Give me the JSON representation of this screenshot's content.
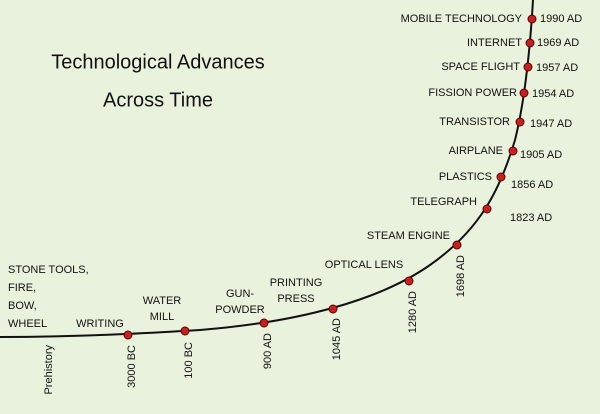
{
  "title": [
    "Technological Advances",
    "Across Time"
  ],
  "events": [
    {
      "label": [
        "STONE TOOLS,",
        "FIRE,",
        "BOW,",
        "WHEEL"
      ],
      "date": "Prehistory"
    },
    {
      "label": [
        "WRITING"
      ],
      "date": "3000 BC"
    },
    {
      "label": [
        "WATER",
        "MILL"
      ],
      "date": "100 BC"
    },
    {
      "label": [
        "GUN-",
        "POWDER"
      ],
      "date": "900 AD"
    },
    {
      "label": [
        "PRINTING",
        "PRESS"
      ],
      "date": "1045 AD"
    },
    {
      "label": [
        "OPTICAL LENS"
      ],
      "date": "1280 AD"
    },
    {
      "label": [
        "STEAM ENGINE"
      ],
      "date": "1698 AD"
    },
    {
      "label": [
        "TELEGRAPH"
      ],
      "date": "1823 AD"
    },
    {
      "label": [
        "PLASTICS"
      ],
      "date": "1856 AD"
    },
    {
      "label": [
        "AIRPLANE"
      ],
      "date": "1905 AD"
    },
    {
      "label": [
        "TRANSISTOR"
      ],
      "date": "1947 AD"
    },
    {
      "label": [
        "FISSION POWER"
      ],
      "date": "1954 AD"
    },
    {
      "label": [
        "SPACE FLIGHT"
      ],
      "date": "1957 AD"
    },
    {
      "label": [
        "INTERNET"
      ],
      "date": "1969 AD"
    },
    {
      "label": [
        "MOBILE TECHNOLOGY"
      ],
      "date": "1990 AD"
    }
  ]
}
